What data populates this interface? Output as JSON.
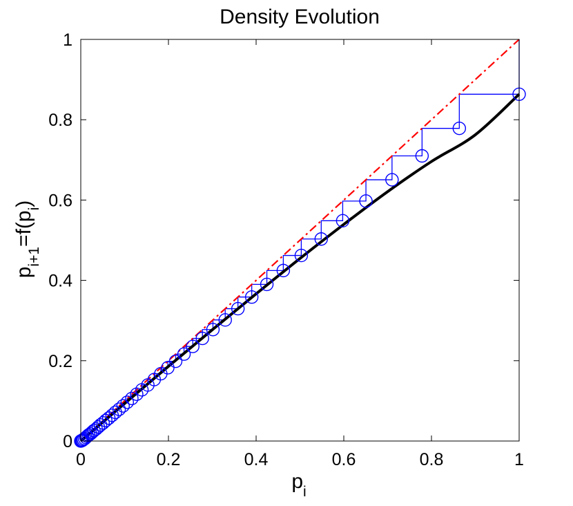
{
  "chart_data": {
    "type": "line",
    "title": "Density Evolution",
    "xlabel": "p",
    "xlabel_sub": "i",
    "ylabel_parts": [
      {
        "text": "p",
        "sub": false
      },
      {
        "text": "i+1",
        "sub": true
      },
      {
        "text": "=f(p",
        "sub": false
      },
      {
        "text": "i",
        "sub": true
      },
      {
        "text": ")",
        "sub": false
      }
    ],
    "xlim": [
      0,
      1
    ],
    "ylim": [
      0,
      1
    ],
    "xticks": [
      0,
      0.2,
      0.4,
      0.6,
      0.8,
      1
    ],
    "xtick_labels": [
      "0",
      "0.2",
      "0.4",
      "0.6",
      "0.8",
      "1"
    ],
    "yticks": [
      0,
      0.2,
      0.4,
      0.6,
      0.8,
      1
    ],
    "ytick_labels": [
      "0",
      "0.2",
      "0.4",
      "0.6",
      "0.8",
      "1"
    ],
    "grid": false,
    "series": [
      {
        "style": "solid-black",
        "color": "#000000",
        "x": [
          0,
          0.1,
          0.2,
          0.3,
          0.4,
          0.5,
          0.6,
          0.7,
          0.8,
          0.9,
          1.0
        ],
        "y": [
          0,
          0.0935,
          0.186,
          0.277,
          0.3665,
          0.4545,
          0.5395,
          0.621,
          0.696,
          0.7625,
          0.8635
        ]
      },
      {
        "style": "dash-dot-red",
        "color": "#ff0000",
        "x": [
          0,
          1
        ],
        "y": [
          0,
          1
        ]
      },
      {
        "style": "staircase-blue-circles",
        "color": "#0000ff",
        "x": [
          1,
          0.8635,
          0.7785,
          0.71,
          0.6505,
          0.5975,
          0.5485,
          0.503,
          0.462,
          0.4245,
          0.39,
          0.3585,
          0.3295,
          0.3015,
          0.2775,
          0.2555,
          0.2355,
          0.2165,
          0.1985,
          0.1825,
          0.1675,
          0.153,
          0.1395,
          0.1275,
          0.1165,
          0.106,
          0.0965,
          0.0875,
          0.079,
          0.0715,
          0.064,
          0.057,
          0.051,
          0.045,
          0.04,
          0.035,
          0.03,
          0.026,
          0.022,
          0.018,
          0.015,
          0.012,
          0.009,
          0.006,
          0.004,
          0.002,
          0.001,
          0
        ],
        "y": [
          0.8635,
          0.7785,
          0.71,
          0.6505,
          0.5975,
          0.5485,
          0.503,
          0.462,
          0.4245,
          0.39,
          0.3585,
          0.3295,
          0.3015,
          0.2775,
          0.2555,
          0.2355,
          0.2165,
          0.1985,
          0.1825,
          0.1675,
          0.153,
          0.1395,
          0.1275,
          0.1165,
          0.106,
          0.0965,
          0.0875,
          0.079,
          0.0715,
          0.064,
          0.057,
          0.051,
          0.045,
          0.04,
          0.035,
          0.03,
          0.026,
          0.022,
          0.018,
          0.015,
          0.012,
          0.009,
          0.006,
          0.004,
          0.002,
          0.001,
          0.0005,
          0
        ]
      }
    ]
  }
}
